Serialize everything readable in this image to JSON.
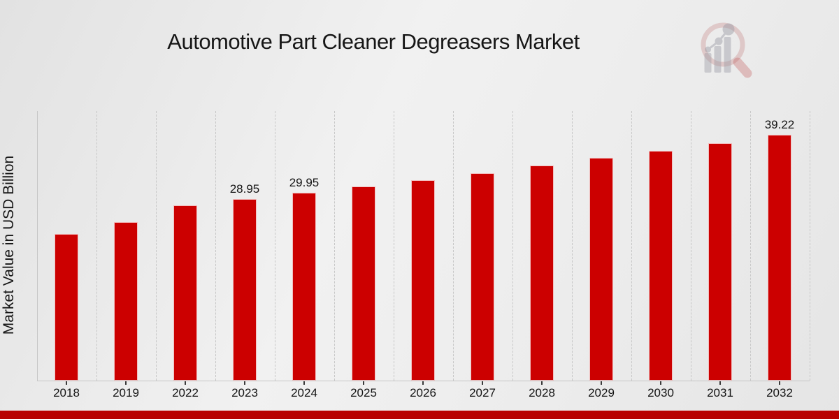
{
  "header": {
    "title": "Automotive Part Cleaner Degreasers Market"
  },
  "y_axis": {
    "label": "Market Value in USD Billion"
  },
  "logo": {
    "name": "market-research-future-watermark",
    "ring_color": "#c07878",
    "glyph_color": "#9a9aa4",
    "handle_color": "#c25858"
  },
  "footer": {
    "banner_color": "#b80101"
  },
  "chart_data": {
    "type": "bar",
    "title": "Automotive Part Cleaner Degreasers Market",
    "xlabel": "",
    "ylabel": "Market Value in USD Billion",
    "categories": [
      "2018",
      "2019",
      "2022",
      "2023",
      "2024",
      "2025",
      "2026",
      "2027",
      "2028",
      "2029",
      "2030",
      "2031",
      "2032"
    ],
    "values": [
      23.4,
      25.3,
      28.0,
      28.95,
      29.95,
      31.0,
      32.0,
      33.1,
      34.3,
      35.5,
      36.7,
      37.9,
      39.22
    ],
    "data_labels": [
      "",
      "",
      "",
      "28.95",
      "29.95",
      "",
      "",
      "",
      "",
      "",
      "",
      "",
      "39.22"
    ],
    "bar_color": "#cc0000",
    "ylim": [
      0,
      43
    ],
    "grid": "vertical-dashed",
    "legend": "none"
  }
}
